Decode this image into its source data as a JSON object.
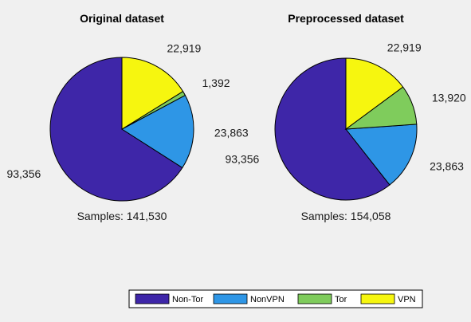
{
  "chart_data": {
    "type": "pie",
    "categories": [
      "Non-Tor",
      "NonVPN",
      "Tor",
      "VPN"
    ],
    "colors": [
      "#3e26a8",
      "#2e96e6",
      "#7fcc5c",
      "#f6f60f"
    ],
    "legend": {
      "placement": "bottom-right",
      "entries": [
        "Non-Tor",
        "NonVPN",
        "Tor",
        "VPN"
      ]
    },
    "pies": [
      {
        "title": "Original dataset",
        "values": [
          93356,
          23863,
          1392,
          22919
        ],
        "labels": [
          "93,356",
          "23,863",
          "1,392",
          "22,919"
        ],
        "total_label": "Samples: 141,530"
      },
      {
        "title": "Preprocessed dataset",
        "values": [
          93356,
          23863,
          13920,
          22919
        ],
        "labels": [
          "93,356",
          "23,863",
          "13,920",
          "22,919"
        ],
        "total_label": "Samples: 154,058"
      }
    ]
  }
}
